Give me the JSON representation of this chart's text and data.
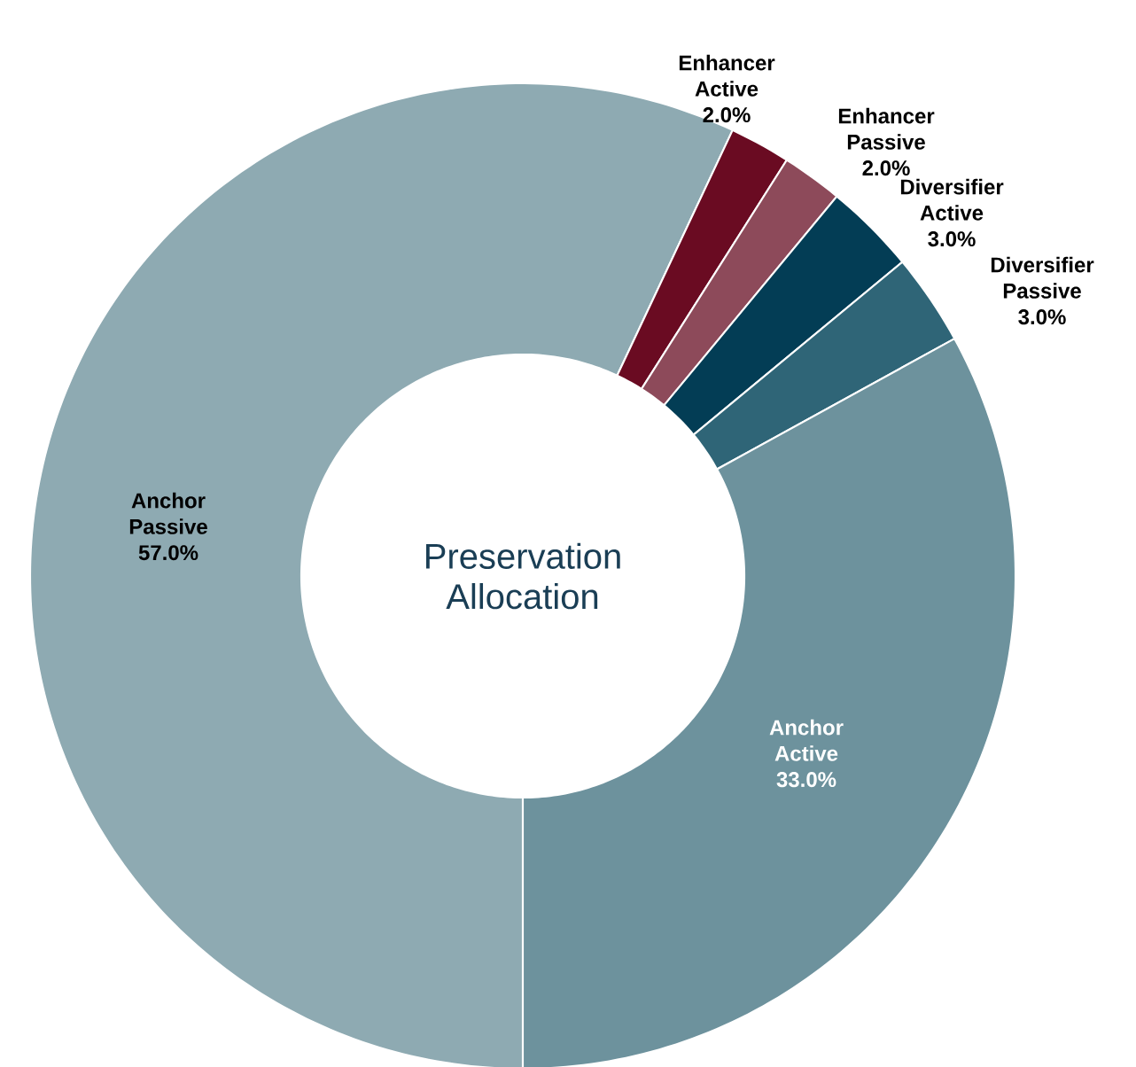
{
  "chart_data": {
    "type": "donut",
    "title": "Preservation Allocation",
    "categories": [
      "Anchor Passive",
      "Enhancer Active",
      "Enhancer Passive",
      "Diversifier Active",
      "Diversifier Passive",
      "Anchor Active"
    ],
    "values": [
      57,
      2,
      2,
      3,
      3,
      33
    ],
    "colors": [
      "#8eaab2",
      "#6a0b22",
      "#8d4a5a",
      "#033d55",
      "#2f6577",
      "#6d929d"
    ],
    "value_labels": [
      "57.0%",
      "2.0%",
      "2.0%",
      "3.0%",
      "3.0%",
      "33.0%"
    ]
  }
}
